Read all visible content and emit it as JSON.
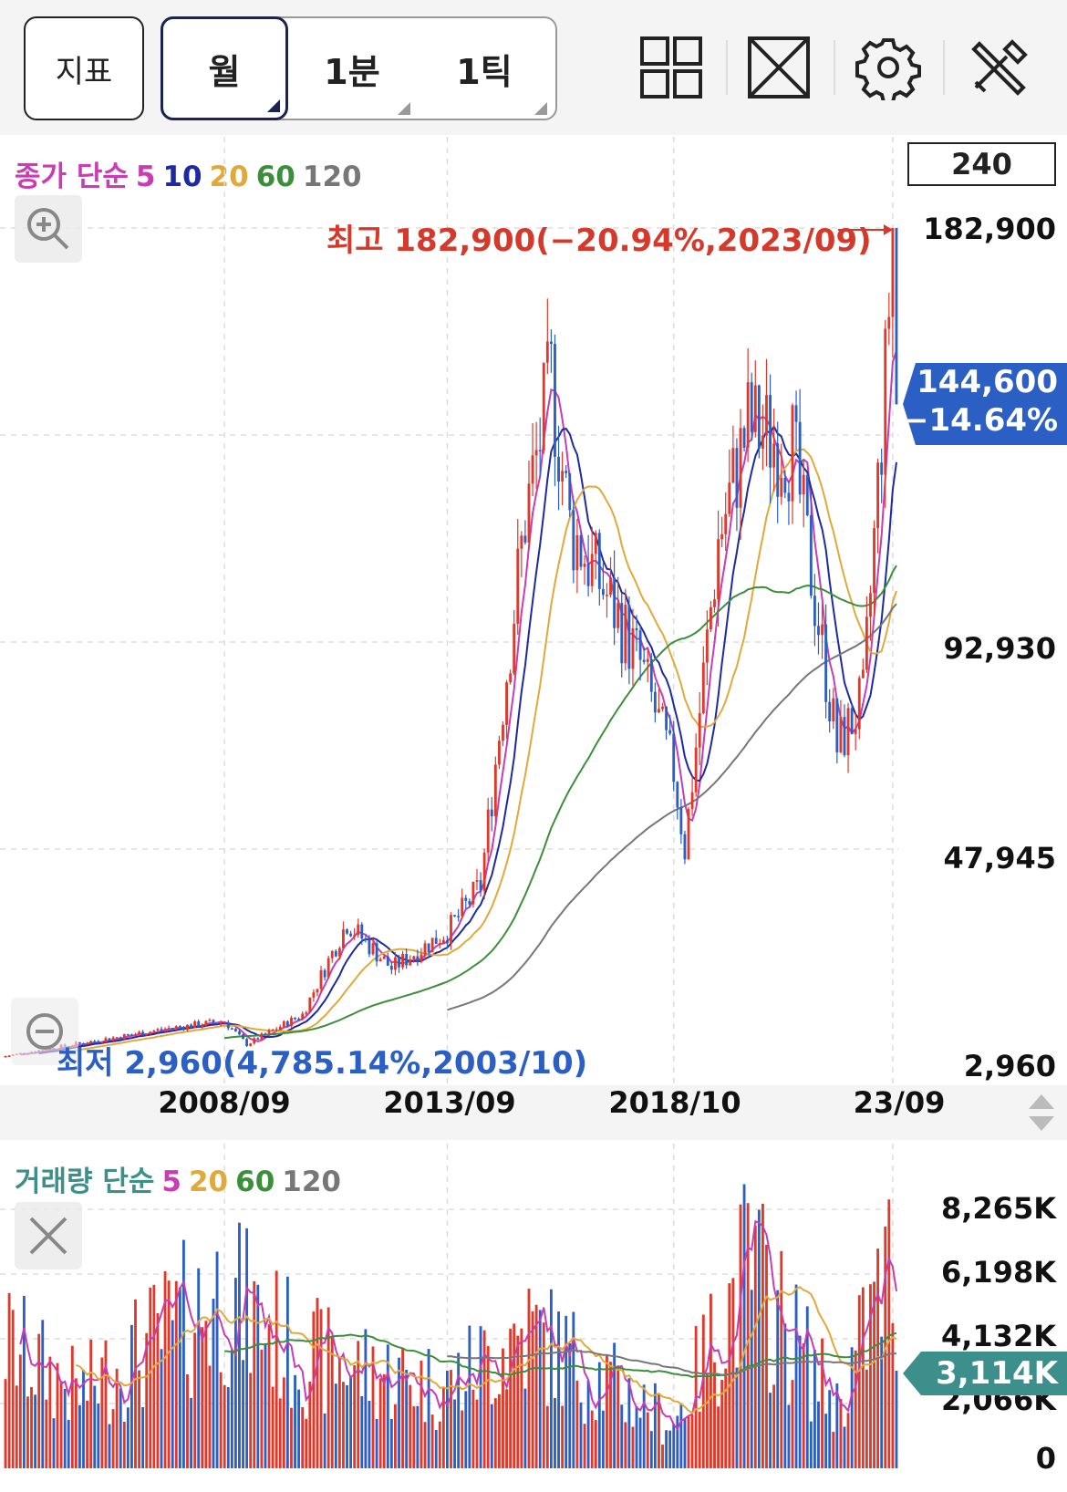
{
  "toolbar": {
    "indicator_label": "지표",
    "periods": [
      "월",
      "1분",
      "1틱"
    ],
    "selected_period": "월",
    "tools": [
      "layout-grid-icon",
      "fullscreen-icon",
      "gear-icon",
      "tools-icon"
    ]
  },
  "price_panel": {
    "legend_prefix": "종가 단순",
    "legend_items": [
      {
        "label": "5",
        "color": "#c83cb4"
      },
      {
        "label": "10",
        "color": "#1e2aa0"
      },
      {
        "label": "20",
        "color": "#e0a93a"
      },
      {
        "label": "60",
        "color": "#3b8f3b"
      },
      {
        "label": "120",
        "color": "#777777"
      }
    ],
    "period_input": "240",
    "y_ticks": [
      "182,900",
      "92,930",
      "47,945",
      "2,960"
    ],
    "current_price": "144,600",
    "current_change": "−14.64%",
    "high_label": "최고 182,900(−20.94%,2023/09)",
    "low_label": "최저 2,960(4,785.14%,2003/10)",
    "x_ticks": [
      "2008/09",
      "2013/09",
      "2018/10",
      "23/09"
    ]
  },
  "volume_panel": {
    "legend_prefix": "거래량 단순",
    "legend_items": [
      {
        "label": "5",
        "color": "#c83cb4"
      },
      {
        "label": "20",
        "color": "#e0a93a"
      },
      {
        "label": "60",
        "color": "#3b8f3b"
      },
      {
        "label": "120",
        "color": "#777777"
      }
    ],
    "y_ticks": [
      "8,265K",
      "6,198K",
      "4,132K",
      "2,066K",
      "0"
    ],
    "current_volume": "3,114K"
  },
  "colors": {
    "up": "#e0392b",
    "down": "#2b5fc4",
    "high": "#d5392b",
    "low": "#2b5fc4",
    "vol_badge": "#3d8f8c"
  },
  "chart_data": {
    "type": "candlestick",
    "interval": "monthly",
    "y_range": [
      2960,
      182900
    ],
    "volume_range_K": [
      0,
      8265
    ],
    "price_path": [
      [
        "2003/10",
        2960
      ],
      [
        "2005/01",
        5000
      ],
      [
        "2007/06",
        9000
      ],
      [
        "2008/09",
        10500
      ],
      [
        "2009/03",
        5500
      ],
      [
        "2010/06",
        12000
      ],
      [
        "2011/06",
        32000
      ],
      [
        "2012/06",
        22000
      ],
      [
        "2013/09",
        30000
      ],
      [
        "2014/06",
        40000
      ],
      [
        "2015/06",
        120000
      ],
      [
        "2016/01",
        150000
      ],
      [
        "2016/06",
        118000
      ],
      [
        "2017/06",
        100000
      ],
      [
        "2018/01",
        88000
      ],
      [
        "2018/10",
        65000
      ],
      [
        "2019/01",
        48000
      ],
      [
        "2019/10",
        115000
      ],
      [
        "2020/06",
        140000
      ],
      [
        "2021/06",
        135000
      ],
      [
        "2022/06",
        70000
      ],
      [
        "2023/01",
        80000
      ],
      [
        "2023/07",
        150000
      ],
      [
        "2023/09",
        182900
      ],
      [
        "2023/10",
        144600
      ]
    ],
    "volume_path_K": [
      [
        "2003/10",
        5000
      ],
      [
        "2005/06",
        3000
      ],
      [
        "2008/09",
        7000
      ],
      [
        "2010/06",
        4500
      ],
      [
        "2013/09",
        3200
      ],
      [
        "2015/06",
        5500
      ],
      [
        "2018/10",
        1800
      ],
      [
        "2020/06",
        8000
      ],
      [
        "2022/06",
        2500
      ],
      [
        "2023/09",
        8200
      ],
      [
        "2023/10",
        3114
      ]
    ]
  }
}
